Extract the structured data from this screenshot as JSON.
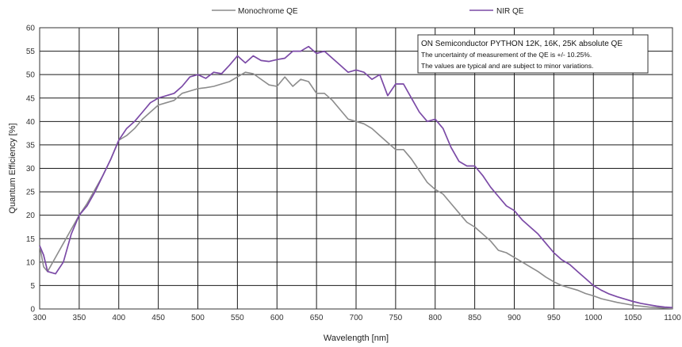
{
  "chart_data": {
    "type": "line",
    "title": "",
    "xlabel": "Wavelength [nm]",
    "ylabel": "Quantum Efficiency [%]",
    "xlim": [
      300,
      1100
    ],
    "ylim": [
      0,
      60
    ],
    "xticks": [
      300,
      350,
      400,
      450,
      500,
      550,
      600,
      650,
      700,
      750,
      800,
      850,
      900,
      950,
      1000,
      1050,
      1100
    ],
    "yticks": [
      0,
      5,
      10,
      15,
      20,
      25,
      30,
      35,
      40,
      45,
      50,
      55,
      60
    ],
    "grid": true,
    "legend": "top-center",
    "annotation": {
      "title": "ON Semiconductor PYTHON 12K, 16K, 25K absolute QE",
      "lines": [
        "The uncertainty of measurement of the QE is +/- 10.25%.",
        "The values are typical and are subject to minor variations."
      ]
    },
    "series": [
      {
        "name": "Monochrome QE",
        "color": "#8c8c8c",
        "x": [
          300,
          305,
          310,
          320,
          330,
          340,
          350,
          360,
          370,
          380,
          390,
          400,
          410,
          420,
          430,
          440,
          450,
          460,
          470,
          480,
          490,
          500,
          510,
          520,
          530,
          540,
          550,
          560,
          570,
          580,
          590,
          600,
          610,
          620,
          630,
          640,
          650,
          660,
          670,
          680,
          690,
          700,
          710,
          720,
          730,
          740,
          750,
          760,
          770,
          780,
          790,
          800,
          810,
          820,
          830,
          840,
          850,
          860,
          870,
          880,
          890,
          900,
          910,
          920,
          930,
          940,
          950,
          960,
          970,
          980,
          990,
          1000,
          1010,
          1020,
          1030,
          1040,
          1050,
          1060,
          1070,
          1080,
          1090,
          1100
        ],
        "y": [
          13.5,
          9,
          8,
          11,
          14,
          17,
          20,
          22.5,
          25.5,
          28.5,
          32,
          36,
          37,
          38.5,
          40.5,
          42,
          43.5,
          44,
          44.5,
          46,
          46.5,
          47,
          47.2,
          47.5,
          48,
          48.5,
          49.5,
          50.5,
          50.2,
          49,
          47.8,
          47.5,
          49.5,
          47.5,
          49,
          48.5,
          46,
          46,
          44.5,
          42.5,
          40.5,
          40,
          39.5,
          38.5,
          37,
          35.5,
          34,
          34,
          32,
          29.5,
          27,
          25.5,
          24.5,
          22.5,
          20.5,
          18.5,
          17.5,
          16,
          14.5,
          12.5,
          12,
          11,
          10,
          9,
          8,
          6.8,
          5.8,
          5,
          4.5,
          4,
          3.3,
          2.8,
          2.2,
          1.8,
          1.4,
          1.1,
          0.8,
          0.6,
          0.4,
          0.3,
          0.2,
          0.1
        ]
      },
      {
        "name": "NIR QE",
        "color": "#7b4aa6",
        "x": [
          300,
          305,
          310,
          320,
          330,
          340,
          350,
          360,
          370,
          380,
          390,
          400,
          410,
          420,
          430,
          440,
          450,
          460,
          470,
          480,
          490,
          500,
          510,
          520,
          530,
          540,
          550,
          560,
          570,
          580,
          590,
          600,
          610,
          620,
          630,
          640,
          650,
          660,
          670,
          680,
          690,
          700,
          710,
          720,
          730,
          740,
          750,
          760,
          770,
          780,
          790,
          800,
          810,
          820,
          830,
          840,
          850,
          860,
          870,
          880,
          890,
          900,
          910,
          920,
          930,
          940,
          950,
          960,
          970,
          980,
          990,
          1000,
          1010,
          1020,
          1030,
          1040,
          1050,
          1060,
          1070,
          1080,
          1090,
          1100
        ],
        "y": [
          13.5,
          11.5,
          8,
          7.5,
          10,
          16,
          20,
          22,
          25,
          28.5,
          32,
          36,
          38.5,
          40,
          42,
          44,
          45,
          45.5,
          46,
          47.5,
          49.5,
          50,
          49.2,
          50.5,
          50.2,
          52,
          54,
          52.5,
          54,
          53,
          52.8,
          53.2,
          53.5,
          55,
          55,
          56,
          54.5,
          55,
          53.5,
          52,
          50.5,
          51,
          50.5,
          49,
          50,
          45.5,
          48,
          48,
          45,
          42,
          40,
          40.5,
          38.5,
          34.5,
          31.5,
          30.5,
          30.5,
          28.5,
          26,
          24,
          22,
          21,
          19,
          17.5,
          16,
          14,
          12,
          10.5,
          9.5,
          8,
          6.5,
          5,
          4,
          3.2,
          2.6,
          2.1,
          1.6,
          1.2,
          0.9,
          0.6,
          0.4,
          0.3
        ]
      }
    ]
  }
}
